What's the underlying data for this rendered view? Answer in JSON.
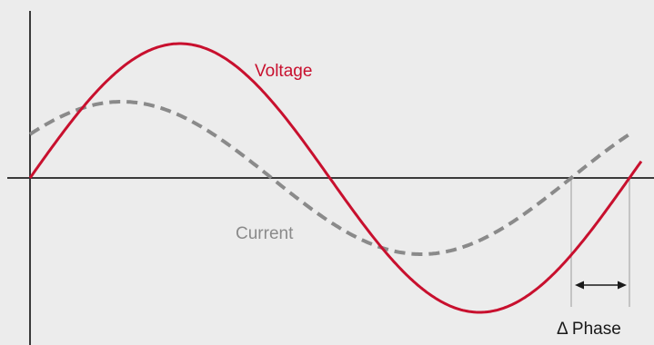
{
  "labels": {
    "voltage": "Voltage",
    "current": "Current",
    "phase": "Δ Phase"
  },
  "colors": {
    "background": "#ececec",
    "axis": "#3a3a3a",
    "voltage": "#c8102e",
    "current": "#8a8a8a",
    "guide": "#a9a9a9",
    "arrow": "#1a1a1a",
    "text_dark": "#1a1a1a"
  },
  "waveforms": {
    "voltage_style": "solid",
    "current_style": "dashed",
    "current_leads_voltage": true
  }
}
